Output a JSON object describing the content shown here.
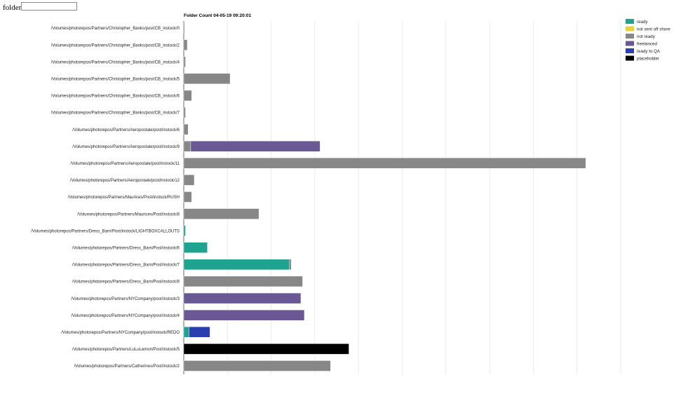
{
  "folder_filter": {
    "label": "folder",
    "value": "",
    "placeholder": ""
  },
  "chart_data": {
    "type": "bar",
    "stacked": true,
    "orientation": "horizontal",
    "title": "Folder Count 04-05-19 09:20:01",
    "grid": true,
    "legend_position": "top-right",
    "xlim": [
      0,
      250
    ],
    "legend": [
      {
        "key": "ready",
        "label": "ready",
        "color": "#1fa391"
      },
      {
        "key": "not_sent_off_shore",
        "label": "not sent off shore",
        "color": "#e8d23f"
      },
      {
        "key": "not_ready",
        "label": "not ready",
        "color": "#878787"
      },
      {
        "key": "freelanced",
        "label": "freelanced",
        "color": "#6a5895"
      },
      {
        "key": "ready_to_qa",
        "label": "ready to QA",
        "color": "#2b3fae"
      },
      {
        "key": "placeholder",
        "label": "placeholder",
        "color": "#000000"
      }
    ],
    "categories": [
      "/Volumes/photorepos/Partners/Christopher_Banks/post/CB_instock/0",
      "/Volumes/photorepos/Partners/Christopher_Banks/post/CB_instock/2",
      "/Volumes/photorepos/Partners/Christopher_Banks/post/CB_instock/4",
      "/Volumes/photorepos/Partners/Christopher_Banks/post/CB_instock/5",
      "/Volumes/photorepos/Partners/Christopher_Banks/post/CB_instock/6",
      "/Volumes/photorepos/Partners/Christopher_Banks/post/CB_instock/7",
      "/Volumes/photorepos/Partners/Aeropostale/post/instock/6",
      "/Volumes/photorepos/Partners/Aeropostale/post/instock/9",
      "/Volumes/photorepos/Partners/Aeropostale/post/instock/11",
      "/Volumes/photorepos/Partners/Aeropostale/post/instock/12",
      "/Volumes/photorepos/Partners/Maurices/Post/instock/RUSH",
      "/Volumes/photorepos/Partners/Maurices/Post/instock/8",
      "/Volumes/photorepos/Partners/Dress_Barn/Post/instock/LIGHTBOXCALLOUTS",
      "/Volumes/photorepos/Partners/Dress_Barn/Post/instock/6",
      "/Volumes/photorepos/Partners/Dress_Barn/Post/instock/7",
      "/Volumes/photorepos/Partners/Dress_Barn/Post/instock/8",
      "/Volumes/photorepos/Partners/NYCompany/post/instock/3",
      "/Volumes/photorepos/Partners/NYCompany/post/instock/4",
      "/Volumes/photorepos/Partners/NYCompany/post/instock/REDO",
      "/Volumes/photorepos/Partners/LuLuLemon/Post/instock/5",
      "/Volumes/photorepos/Partners/Catherines/Post/instock/2"
    ],
    "series": [
      {
        "key": "ready",
        "values": [
          0,
          0,
          0,
          0,
          0,
          0,
          0,
          0,
          0,
          0,
          0,
          0,
          1,
          13.5,
          60.5,
          0,
          0,
          0,
          3,
          0,
          0
        ]
      },
      {
        "key": "not_sent_off_shore",
        "values": [
          0,
          0,
          0,
          0,
          0,
          0,
          0,
          0,
          0,
          0,
          0,
          0,
          0,
          0,
          0,
          0,
          0,
          0,
          0,
          0,
          0
        ]
      },
      {
        "key": "not_ready",
        "values": [
          0.5,
          2,
          1,
          26.5,
          4.5,
          1,
          2.5,
          4,
          230,
          6,
          4.5,
          43,
          0,
          0,
          1,
          68,
          0,
          0,
          0,
          0,
          84
        ]
      },
      {
        "key": "freelanced",
        "values": [
          0,
          0,
          0,
          0,
          0,
          0,
          0,
          74,
          0,
          0,
          0,
          0,
          0,
          0,
          0,
          0,
          67,
          69,
          0,
          0,
          0
        ]
      },
      {
        "key": "ready_to_qa",
        "values": [
          0,
          0,
          0,
          0,
          0,
          0,
          0,
          0,
          0,
          0,
          0,
          0,
          0,
          0,
          0,
          0,
          0,
          0,
          12,
          0,
          0
        ]
      },
      {
        "key": "placeholder",
        "values": [
          0,
          0,
          0,
          0,
          0,
          0,
          0,
          0,
          0,
          0,
          0,
          0,
          0,
          0,
          0,
          0,
          0,
          0,
          0,
          94.5,
          0
        ]
      }
    ]
  }
}
